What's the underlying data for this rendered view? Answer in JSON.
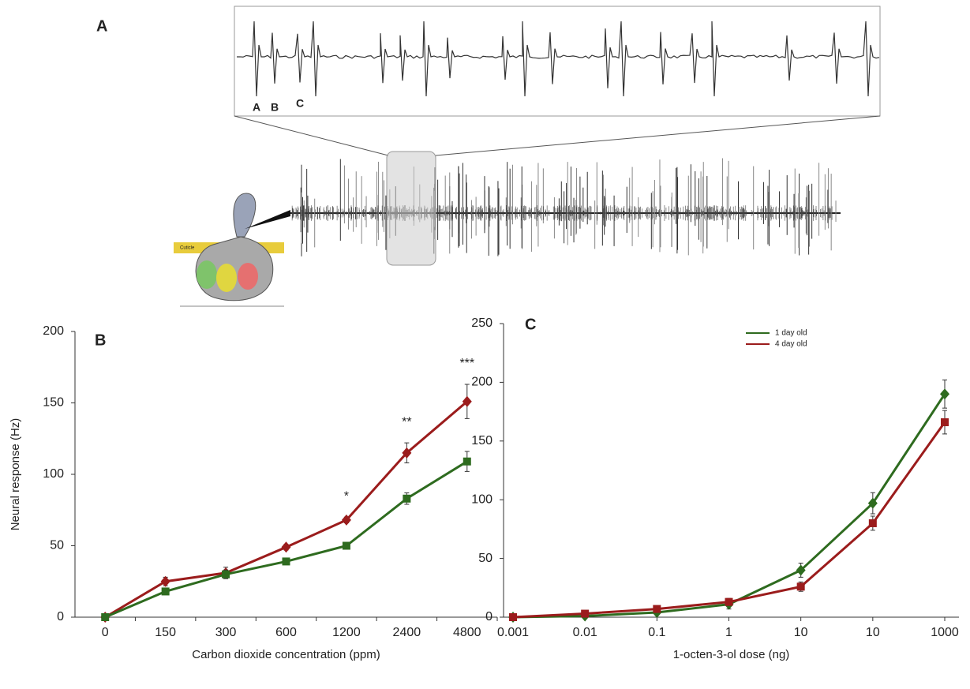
{
  "panel_a": {
    "label": "A",
    "spike_labels": [
      "A",
      "B",
      "C"
    ],
    "cuticle": "Cuticle"
  },
  "chart_data": [
    {
      "type": "line",
      "panel": "B",
      "x_label": "Carbon dioxide concentration (ppm)",
      "y_label": "Neural response (Hz)",
      "categories": [
        "0",
        "150",
        "300",
        "600",
        "1200",
        "2400",
        "4800"
      ],
      "series": [
        {
          "color": "#9b1c1c",
          "marker": "diamond",
          "values": [
            0,
            25,
            31,
            49,
            68,
            115,
            151
          ],
          "errors": [
            1,
            3,
            4,
            2,
            2,
            7,
            12
          ]
        },
        {
          "color": "#2e6b1f",
          "marker": "square",
          "values": [
            0,
            18,
            30,
            39,
            50,
            83,
            109
          ],
          "errors": [
            1,
            2,
            3,
            2,
            2,
            4,
            7
          ]
        }
      ],
      "annotations": [
        {
          "text": "*",
          "category": "1200"
        },
        {
          "text": "**",
          "category": "2400"
        },
        {
          "text": "***",
          "category": "4800"
        }
      ],
      "ylim": [
        0,
        200
      ],
      "yticks": [
        0,
        50,
        100,
        150,
        200
      ]
    },
    {
      "type": "line",
      "panel": "C",
      "x_label": "1-octen-3-ol dose (ng)",
      "categories": [
        "0.001",
        "0.01",
        "0.1",
        "1",
        "10",
        "10",
        "1000"
      ],
      "series": [
        {
          "name": "1 day old",
          "color": "#2e6b1f",
          "marker": "diamond",
          "values": [
            0,
            1,
            4,
            11,
            40,
            97,
            190
          ],
          "errors": [
            1,
            1,
            2,
            4,
            6,
            9,
            12
          ]
        },
        {
          "name": "4 day old",
          "color": "#9b1c1c",
          "marker": "square",
          "values": [
            0,
            3,
            7,
            13,
            26,
            80,
            166
          ],
          "errors": [
            1,
            1,
            2,
            3,
            4,
            6,
            10
          ]
        }
      ],
      "ylim": [
        0,
        250
      ],
      "yticks": [
        0,
        50,
        100,
        150,
        200,
        250
      ],
      "legend": "top"
    }
  ]
}
